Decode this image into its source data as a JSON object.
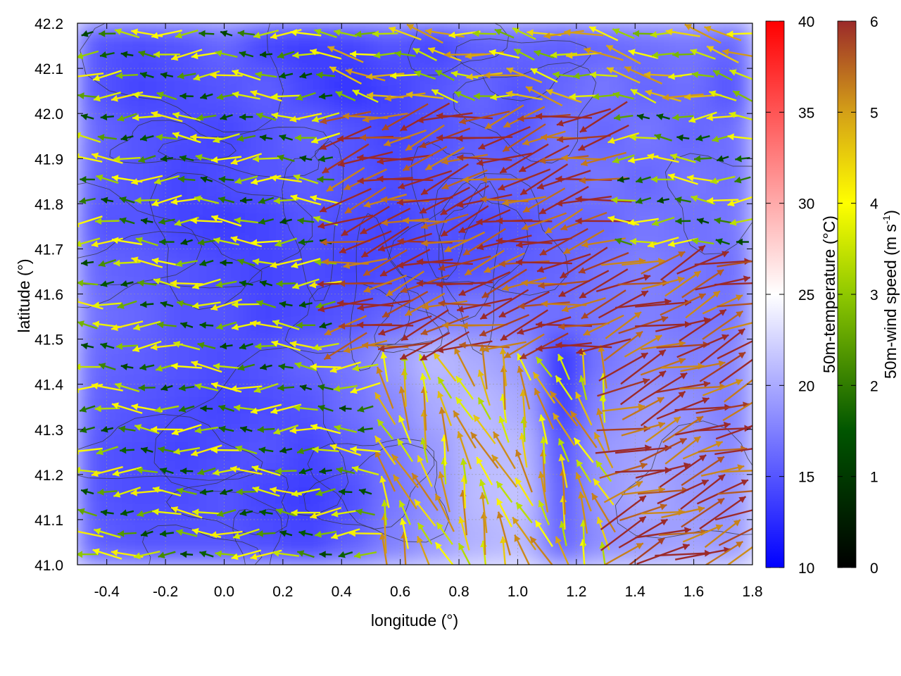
{
  "chart_data": {
    "type": "vector-field-map",
    "xlabel": "longitude (°)",
    "ylabel": "latitude (°)",
    "xlim": [
      -0.5,
      1.8
    ],
    "ylim": [
      41.0,
      42.2
    ],
    "x_ticks": [
      "-0.4",
      "-0.2",
      "0.0",
      "0.2",
      "0.4",
      "0.6",
      "0.8",
      "1.0",
      "1.2",
      "1.4",
      "1.6",
      "1.8"
    ],
    "x_tick_values": [
      -0.4,
      -0.2,
      0.0,
      0.2,
      0.4,
      0.6,
      0.8,
      1.0,
      1.2,
      1.4,
      1.6,
      1.8
    ],
    "y_ticks": [
      "41.0",
      "41.1",
      "41.2",
      "41.3",
      "41.4",
      "41.5",
      "41.6",
      "41.7",
      "41.8",
      "41.9",
      "42.0",
      "42.1",
      "42.2"
    ],
    "y_tick_values": [
      41.0,
      41.1,
      41.2,
      41.3,
      41.4,
      41.5,
      41.6,
      41.7,
      41.8,
      41.9,
      42.0,
      42.1,
      42.2
    ],
    "grid": true,
    "temperature_colorbar": {
      "label": "50m-temperature (°C)",
      "range": [
        10,
        40
      ],
      "ticks": [
        "10",
        "15",
        "20",
        "25",
        "30",
        "35",
        "40"
      ],
      "tick_values": [
        10,
        15,
        20,
        25,
        30,
        35,
        40
      ],
      "colors": [
        "#0000ff",
        "#ffffff",
        "#ff0000"
      ]
    },
    "wind_colorbar": {
      "label": "50m-wind speed (m s",
      "label_sup": "-1",
      "label_end": ")",
      "range": [
        0,
        6
      ],
      "ticks": [
        "0",
        "1",
        "2",
        "3",
        "4",
        "5",
        "6"
      ],
      "tick_values": [
        0,
        1,
        2,
        3,
        4,
        5,
        6
      ],
      "colors": [
        "#000000",
        "#005500",
        "#8fc800",
        "#ffff00",
        "#d4a017",
        "#c0721e",
        "#9b2a2a"
      ]
    },
    "temperature_field": [
      [
        15,
        14.5,
        15,
        16,
        14,
        13.5,
        14,
        15,
        14,
        15.5,
        16,
        15.5,
        16,
        16.5,
        17,
        16
      ],
      [
        15,
        14,
        14.5,
        15,
        15.5,
        14,
        13,
        14,
        15,
        16,
        15,
        16,
        17,
        16,
        16.5,
        15
      ],
      [
        16,
        15,
        14.5,
        14,
        15,
        16,
        15,
        14,
        15,
        15.5,
        15,
        17,
        16,
        17,
        16,
        16.5
      ],
      [
        15.5,
        15,
        14,
        14.5,
        15,
        15.5,
        15,
        14.5,
        15,
        16,
        16,
        16.5,
        17,
        16,
        17,
        16.5
      ],
      [
        15,
        15,
        14,
        13.5,
        14,
        15,
        14.5,
        14,
        15,
        14.5,
        15,
        16,
        16,
        17,
        16.5,
        17
      ],
      [
        16,
        15.5,
        15,
        14.5,
        14,
        14.5,
        14,
        14.5,
        14.5,
        15,
        15.5,
        16,
        17,
        17.5,
        17,
        16.5
      ],
      [
        16.5,
        16,
        15,
        15,
        14,
        14.5,
        15,
        16,
        17,
        17.5,
        17,
        16.5,
        17,
        17.5,
        17,
        17
      ],
      [
        16,
        15.5,
        15,
        14.5,
        15,
        16,
        17,
        19,
        21,
        20,
        19,
        13,
        17,
        18,
        17.5,
        18
      ],
      [
        15.5,
        15,
        14.5,
        14,
        14.5,
        15,
        16.5,
        18,
        20,
        21,
        20,
        13.5,
        18,
        19,
        18.5,
        17.5
      ],
      [
        15,
        14.5,
        14,
        14.5,
        15,
        14,
        15.5,
        17,
        19,
        21,
        21,
        15,
        19,
        19.5,
        19,
        18
      ],
      [
        15,
        14.5,
        14.5,
        15,
        14,
        13.5,
        14.5,
        17,
        18.5,
        21,
        21.5,
        15.5,
        19,
        20,
        19,
        18.5
      ],
      [
        15.5,
        15,
        15,
        15,
        14.5,
        14,
        15.5,
        17.5,
        19,
        20.5,
        21,
        16,
        18.5,
        19,
        19.5,
        19
      ]
    ],
    "wind_field": {
      "rows": 26,
      "cols": 34,
      "rule": "speed_and_direction_by_region",
      "regions": [
        {
          "lon": [
            -0.5,
            0.35
          ],
          "lat": [
            41.0,
            42.2
          ],
          "speed": 2.0,
          "direction_deg": 180
        },
        {
          "lon": [
            0.35,
            1.3
          ],
          "lat": [
            41.45,
            42.0
          ],
          "speed": 5.8,
          "direction_deg": 165
        },
        {
          "lon": [
            1.3,
            1.8
          ],
          "lat": [
            41.0,
            41.7
          ],
          "speed": 5.6,
          "direction_deg": 340
        },
        {
          "lon": [
            0.5,
            1.3
          ],
          "lat": [
            41.0,
            41.45
          ],
          "speed": 3.5,
          "direction_deg": 250
        },
        {
          "lon": [
            0.35,
            1.8
          ],
          "lat": [
            42.0,
            42.2
          ],
          "speed": 3.0,
          "direction_deg": 190
        }
      ]
    },
    "contour_lines": true
  }
}
